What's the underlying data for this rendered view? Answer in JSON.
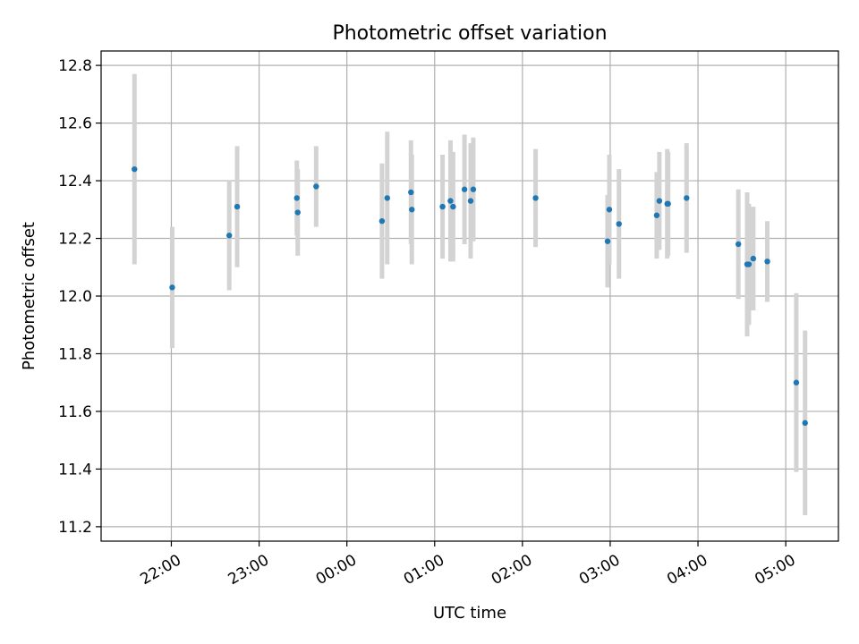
{
  "chart_data": {
    "type": "scatter",
    "title": "Photometric offset variation",
    "xlabel": "UTC time",
    "ylabel": "Photometric offset",
    "grid": true,
    "legend": "none",
    "x_unit": "hours after 00:00 UTC (negative = previous day)",
    "xlim": [
      -2.8,
      5.6
    ],
    "ylim": [
      11.15,
      12.85
    ],
    "x_ticks": [
      {
        "value": -2,
        "label": "22:00"
      },
      {
        "value": -1,
        "label": "23:00"
      },
      {
        "value": 0,
        "label": "00:00"
      },
      {
        "value": 1,
        "label": "01:00"
      },
      {
        "value": 2,
        "label": "02:00"
      },
      {
        "value": 3,
        "label": "03:00"
      },
      {
        "value": 4,
        "label": "04:00"
      },
      {
        "value": 5,
        "label": "05:00"
      }
    ],
    "y_ticks": [
      {
        "value": 11.2,
        "label": "11.2"
      },
      {
        "value": 11.4,
        "label": "11.4"
      },
      {
        "value": 11.6,
        "label": "11.6"
      },
      {
        "value": 11.8,
        "label": "11.8"
      },
      {
        "value": 12.0,
        "label": "12.0"
      },
      {
        "value": 12.2,
        "label": "12.2"
      },
      {
        "value": 12.4,
        "label": "12.4"
      },
      {
        "value": 12.6,
        "label": "12.6"
      },
      {
        "value": 12.8,
        "label": "12.8"
      }
    ],
    "colors": {
      "points": "#1f77b4",
      "errorbars": "#d3d3d3",
      "grid": "#b0b0b0",
      "axes": "#000000"
    },
    "series": [
      {
        "name": "offset",
        "points": [
          {
            "x": -2.42,
            "y": 12.44,
            "err": 0.33
          },
          {
            "x": -1.99,
            "y": 12.03,
            "err": 0.21
          },
          {
            "x": -1.34,
            "y": 12.21,
            "err": 0.19
          },
          {
            "x": -1.25,
            "y": 12.31,
            "err": 0.21
          },
          {
            "x": -0.57,
            "y": 12.34,
            "err": 0.13
          },
          {
            "x": -0.56,
            "y": 12.29,
            "err": 0.15
          },
          {
            "x": -0.35,
            "y": 12.38,
            "err": 0.14
          },
          {
            "x": 0.4,
            "y": 12.26,
            "err": 0.2
          },
          {
            "x": 0.46,
            "y": 12.34,
            "err": 0.23
          },
          {
            "x": 0.73,
            "y": 12.36,
            "err": 0.18
          },
          {
            "x": 0.74,
            "y": 12.3,
            "err": 0.19
          },
          {
            "x": 1.09,
            "y": 12.31,
            "err": 0.18
          },
          {
            "x": 1.18,
            "y": 12.33,
            "err": 0.21
          },
          {
            "x": 1.21,
            "y": 12.31,
            "err": 0.19
          },
          {
            "x": 1.34,
            "y": 12.37,
            "err": 0.19
          },
          {
            "x": 1.41,
            "y": 12.33,
            "err": 0.2
          },
          {
            "x": 1.44,
            "y": 12.37,
            "err": 0.18
          },
          {
            "x": 2.15,
            "y": 12.34,
            "err": 0.17
          },
          {
            "x": 2.97,
            "y": 12.19,
            "err": 0.16
          },
          {
            "x": 2.99,
            "y": 12.3,
            "err": 0.19
          },
          {
            "x": 3.1,
            "y": 12.25,
            "err": 0.19
          },
          {
            "x": 3.53,
            "y": 12.28,
            "err": 0.15
          },
          {
            "x": 3.56,
            "y": 12.33,
            "err": 0.17
          },
          {
            "x": 3.65,
            "y": 12.32,
            "err": 0.19
          },
          {
            "x": 3.66,
            "y": 12.32,
            "err": 0.18
          },
          {
            "x": 3.87,
            "y": 12.34,
            "err": 0.19
          },
          {
            "x": 4.46,
            "y": 12.18,
            "err": 0.19
          },
          {
            "x": 4.56,
            "y": 12.11,
            "err": 0.25
          },
          {
            "x": 4.58,
            "y": 12.11,
            "err": 0.21
          },
          {
            "x": 4.63,
            "y": 12.13,
            "err": 0.18
          },
          {
            "x": 4.79,
            "y": 12.12,
            "err": 0.14
          },
          {
            "x": 5.12,
            "y": 11.7,
            "err": 0.31
          },
          {
            "x": 5.22,
            "y": 11.56,
            "err": 0.32
          }
        ]
      }
    ]
  }
}
